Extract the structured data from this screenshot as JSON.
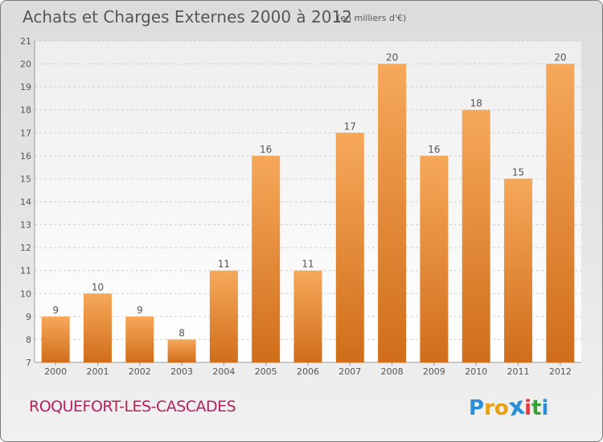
{
  "header": {
    "title": "Achats et Charges Externes 2000 à 2012",
    "unit": "(en milliers d'€)"
  },
  "footer": {
    "town": "ROQUEFORT-LES-CASCADES",
    "logo_letters": [
      "P",
      "r",
      "o",
      "x",
      "i",
      "t",
      "i"
    ],
    "logo_colors": [
      "#2a8fd6",
      "#e8a010",
      "#e8a010",
      "#2a8fd6",
      "#e03a3a",
      "#3aa03a",
      "#2a8fd6"
    ]
  },
  "colors": {
    "bar_light": "#f6a85a",
    "bar_dark": "#d06e1a",
    "label": "#555555"
  },
  "chart_data": {
    "type": "bar",
    "title": "Achats et Charges Externes 2000 à 2012",
    "subtitle": "(en milliers d'€)",
    "categories": [
      "2000",
      "2001",
      "2002",
      "2003",
      "2004",
      "2005",
      "2006",
      "2007",
      "2008",
      "2009",
      "2010",
      "2011",
      "2012"
    ],
    "values": [
      9,
      10,
      9,
      8,
      11,
      16,
      11,
      17,
      20,
      16,
      18,
      15,
      20
    ],
    "data_labels": [
      "9",
      "10",
      "9",
      "8",
      "11",
      "16",
      "11",
      "17",
      "20",
      "16",
      "18",
      "15",
      "20"
    ],
    "ylim": [
      7,
      21
    ],
    "yticks": [
      "7",
      "8",
      "9",
      "10",
      "11",
      "12",
      "13",
      "14",
      "15",
      "16",
      "17",
      "18",
      "19",
      "20",
      "21"
    ],
    "grid": true
  }
}
